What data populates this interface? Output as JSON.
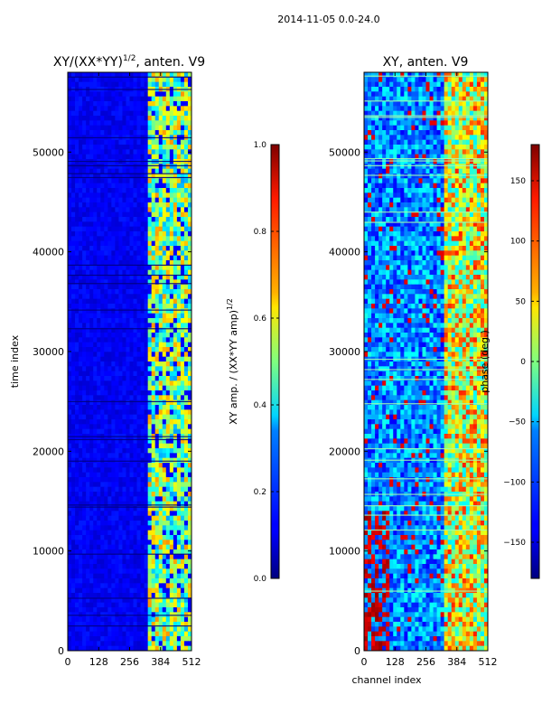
{
  "figure": {
    "suptitle": "2014-11-05 0.0-24.0"
  },
  "chart_data": [
    {
      "type": "heatmap",
      "title": "XY/(XX*YY)^1/2, anten. V9",
      "title_main": "XY/(XX*YY)",
      "title_exp": "1/2",
      "title_tail": ", anten. V9",
      "xlabel": "",
      "ylabel": "time index",
      "xlim": [
        0,
        512
      ],
      "ylim": [
        0,
        58000
      ],
      "xticks": [
        0,
        128,
        256,
        384,
        512
      ],
      "xtick_labels": [
        "0",
        "128",
        "256",
        "384",
        "512"
      ],
      "yticks": [
        0,
        10000,
        20000,
        30000,
        40000,
        50000
      ],
      "ytick_labels": [
        "0",
        "10000",
        "20000",
        "30000",
        "40000",
        "50000"
      ],
      "colormap": "jet",
      "colorbar": {
        "label": "XY amp. / (XX*YY amp)^1/2",
        "label_main": "XY amp. / (XX*YY amp)",
        "label_exp": "1/2",
        "range": [
          0.0,
          1.0
        ],
        "ticks": [
          0.0,
          0.2,
          0.4,
          0.6,
          0.8,
          1.0
        ],
        "tick_labels": [
          "0.0",
          "0.2",
          "0.4",
          "0.6",
          "0.8",
          "1.0"
        ]
      }
    },
    {
      "type": "heatmap",
      "title": "XY, anten. V9",
      "xlabel": "channel index",
      "ylabel": "",
      "xlim": [
        0,
        512
      ],
      "ylim": [
        0,
        58000
      ],
      "xticks": [
        0,
        128,
        256,
        384,
        512
      ],
      "xtick_labels": [
        "0",
        "128",
        "256",
        "384",
        "512"
      ],
      "yticks": [
        0,
        10000,
        20000,
        30000,
        40000,
        50000
      ],
      "ytick_labels": [
        "0",
        "10000",
        "20000",
        "30000",
        "40000",
        "50000"
      ],
      "colormap": "jet",
      "colorbar": {
        "label": "phase (deg.)",
        "range": [
          -180,
          180
        ],
        "ticks": [
          -150,
          -100,
          -50,
          0,
          50,
          100,
          150
        ],
        "tick_labels": [
          "−150",
          "−100",
          "−50",
          "0",
          "50",
          "100",
          "150"
        ]
      }
    }
  ],
  "colors": {
    "jet_low": "#00007f",
    "jet_mid": "#7fff7f",
    "jet_high": "#7f0000"
  }
}
